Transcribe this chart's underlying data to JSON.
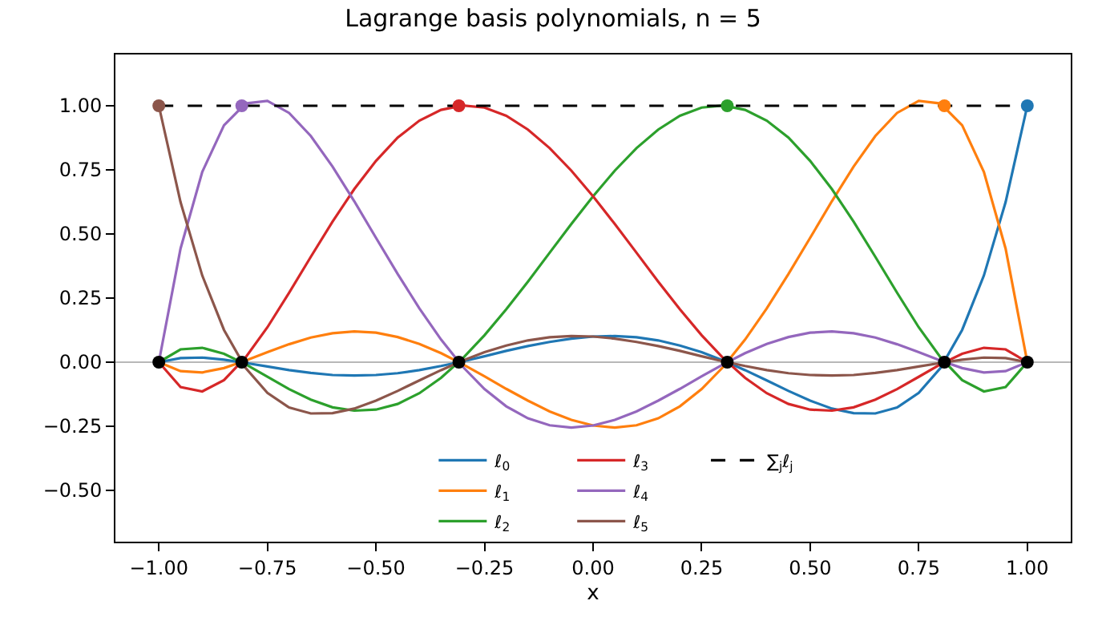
{
  "chart_data": {
    "type": "line",
    "title": "Lagrange basis polynomials, n = 5",
    "xlabel": "x",
    "x": [
      -1.0,
      -0.95,
      -0.9,
      -0.85,
      -0.8,
      -0.75,
      -0.7,
      -0.65,
      -0.6,
      -0.55,
      -0.5,
      -0.45,
      -0.4,
      -0.35,
      -0.3,
      -0.25,
      -0.2,
      -0.15,
      -0.1,
      -0.05,
      0.0,
      0.05,
      0.1,
      0.15,
      0.2,
      0.25,
      0.3,
      0.35,
      0.4,
      0.45,
      0.5,
      0.55,
      0.6,
      0.65,
      0.7,
      0.75,
      0.8,
      0.85,
      0.9,
      0.95,
      1.0
    ],
    "series": [
      {
        "name": "ℓ$_{0}$",
        "color": "#1f77b4",
        "values": [
          0,
          0.016,
          0.018,
          0.01,
          -0.003,
          -0.017,
          -0.031,
          -0.042,
          -0.05,
          -0.052,
          -0.05,
          -0.043,
          -0.031,
          -0.015,
          0.003,
          0.023,
          0.044,
          0.063,
          0.079,
          0.092,
          0.1,
          0.102,
          0.097,
          0.085,
          0.065,
          0.039,
          0.006,
          -0.031,
          -0.071,
          -0.112,
          -0.15,
          -0.181,
          -0.199,
          -0.2,
          -0.177,
          -0.12,
          -0.023,
          0.126,
          0.338,
          0.624,
          1.0
        ]
      },
      {
        "name": "ℓ$_{1}$",
        "color": "#ff7f0e",
        "values": [
          0,
          -0.035,
          -0.04,
          -0.023,
          0.006,
          0.039,
          0.07,
          0.096,
          0.113,
          0.12,
          0.115,
          0.098,
          0.071,
          0.035,
          -0.008,
          -0.055,
          -0.104,
          -0.15,
          -0.192,
          -0.225,
          -0.247,
          -0.255,
          -0.246,
          -0.219,
          -0.172,
          -0.105,
          -0.018,
          0.088,
          0.21,
          0.344,
          0.485,
          0.628,
          0.763,
          0.882,
          0.972,
          1.019,
          1.009,
          0.924,
          0.742,
          0.443,
          0
        ]
      },
      {
        "name": "ℓ$_{2}$",
        "color": "#2ca02c",
        "values": [
          0,
          0.05,
          0.056,
          0.033,
          -0.008,
          -0.057,
          -0.105,
          -0.146,
          -0.176,
          -0.189,
          -0.185,
          -0.163,
          -0.121,
          -0.061,
          0.015,
          0.105,
          0.206,
          0.314,
          0.427,
          0.539,
          0.647,
          0.747,
          0.835,
          0.907,
          0.961,
          0.993,
          1.001,
          0.984,
          0.942,
          0.876,
          0.785,
          0.675,
          0.548,
          0.411,
          0.271,
          0.136,
          0.019,
          -0.07,
          -0.114,
          -0.097,
          0
        ]
      },
      {
        "name": "ℓ$_{3}$",
        "color": "#d62728",
        "values": [
          0,
          -0.097,
          -0.114,
          -0.07,
          0.019,
          0.136,
          0.271,
          0.411,
          0.548,
          0.675,
          0.785,
          0.876,
          0.942,
          0.984,
          1.001,
          0.993,
          0.961,
          0.907,
          0.835,
          0.747,
          0.647,
          0.539,
          0.427,
          0.314,
          0.206,
          0.105,
          0.015,
          -0.061,
          -0.121,
          -0.163,
          -0.185,
          -0.189,
          -0.176,
          -0.146,
          -0.105,
          -0.057,
          -0.008,
          0.033,
          0.056,
          0.05,
          0
        ]
      },
      {
        "name": "ℓ$_{4}$",
        "color": "#9467bd",
        "values": [
          0,
          0.443,
          0.742,
          0.924,
          1.009,
          1.019,
          0.972,
          0.882,
          0.763,
          0.628,
          0.485,
          0.344,
          0.21,
          0.088,
          -0.018,
          -0.105,
          -0.172,
          -0.219,
          -0.246,
          -0.255,
          -0.247,
          -0.225,
          -0.192,
          -0.15,
          -0.104,
          -0.055,
          -0.008,
          0.035,
          0.071,
          0.098,
          0.115,
          0.12,
          0.113,
          0.096,
          0.07,
          0.039,
          0.006,
          -0.023,
          -0.04,
          -0.035,
          0
        ]
      },
      {
        "name": "ℓ$_{5}$",
        "color": "#8c564b",
        "values": [
          1.0,
          0.624,
          0.338,
          0.126,
          -0.023,
          -0.12,
          -0.177,
          -0.2,
          -0.199,
          -0.181,
          -0.15,
          -0.112,
          -0.071,
          -0.031,
          0.006,
          0.039,
          0.065,
          0.085,
          0.097,
          0.102,
          0.1,
          0.092,
          0.079,
          0.063,
          0.044,
          0.023,
          0.003,
          -0.015,
          -0.031,
          -0.043,
          -0.05,
          -0.052,
          -0.05,
          -0.042,
          -0.031,
          -0.017,
          -0.003,
          0.01,
          0.018,
          0.016,
          0
        ]
      },
      {
        "name": "∑$_{j}$ℓ$_{j}$",
        "color": "#000000",
        "line_style": "dashed",
        "x": [
          -1.0,
          1.0
        ],
        "values": [
          1.0,
          1.0
        ]
      },
      {
        "type": "scatter",
        "marker": "circle",
        "x": [
          1.0,
          0.809,
          0.309,
          -0.309,
          -0.809,
          -1.0
        ],
        "values": [
          1,
          1,
          1,
          1,
          1,
          1
        ],
        "colors": [
          "#1f77b4",
          "#ff7f0e",
          "#2ca02c",
          "#d62728",
          "#9467bd",
          "#8c564b"
        ]
      },
      {
        "type": "scatter",
        "marker": "circle",
        "color": "#000000",
        "x": [
          1.0,
          0.809,
          0.309,
          -0.309,
          -0.809,
          -1.0
        ],
        "values": [
          0,
          0,
          0,
          0,
          0,
          0
        ]
      }
    ],
    "ref_lines": [
      {
        "axis": "y",
        "value": 0,
        "color": "#a0a0a0"
      }
    ],
    "xlim": [
      -1.1,
      1.1
    ],
    "xticks": [
      {
        "value": -1,
        "label": "−1.00"
      },
      {
        "value": -0.75,
        "label": "−0.75"
      },
      {
        "value": -0.5,
        "label": "−0.50"
      },
      {
        "value": -0.25,
        "label": "−0.25"
      },
      {
        "value": 0,
        "label": "0.00"
      },
      {
        "value": 0.25,
        "label": "0.25"
      },
      {
        "value": 0.5,
        "label": "0.50"
      },
      {
        "value": 0.75,
        "label": "0.75"
      },
      {
        "value": 1,
        "label": "1.00"
      }
    ],
    "ylim": [
      -0.7,
      1.2
    ],
    "yticks": [
      {
        "value": -0.5,
        "label": "−0.50"
      },
      {
        "value": -0.25,
        "label": "−0.25"
      },
      {
        "value": 0,
        "label": "0.00"
      },
      {
        "value": 0.25,
        "label": "0.25"
      },
      {
        "value": 0.5,
        "label": "0.50"
      },
      {
        "value": 0.75,
        "label": "0.75"
      },
      {
        "value": 1,
        "label": "1.00"
      }
    ],
    "grid": false,
    "legend": "bottom",
    "marker": "none",
    "line_style": "solid"
  }
}
